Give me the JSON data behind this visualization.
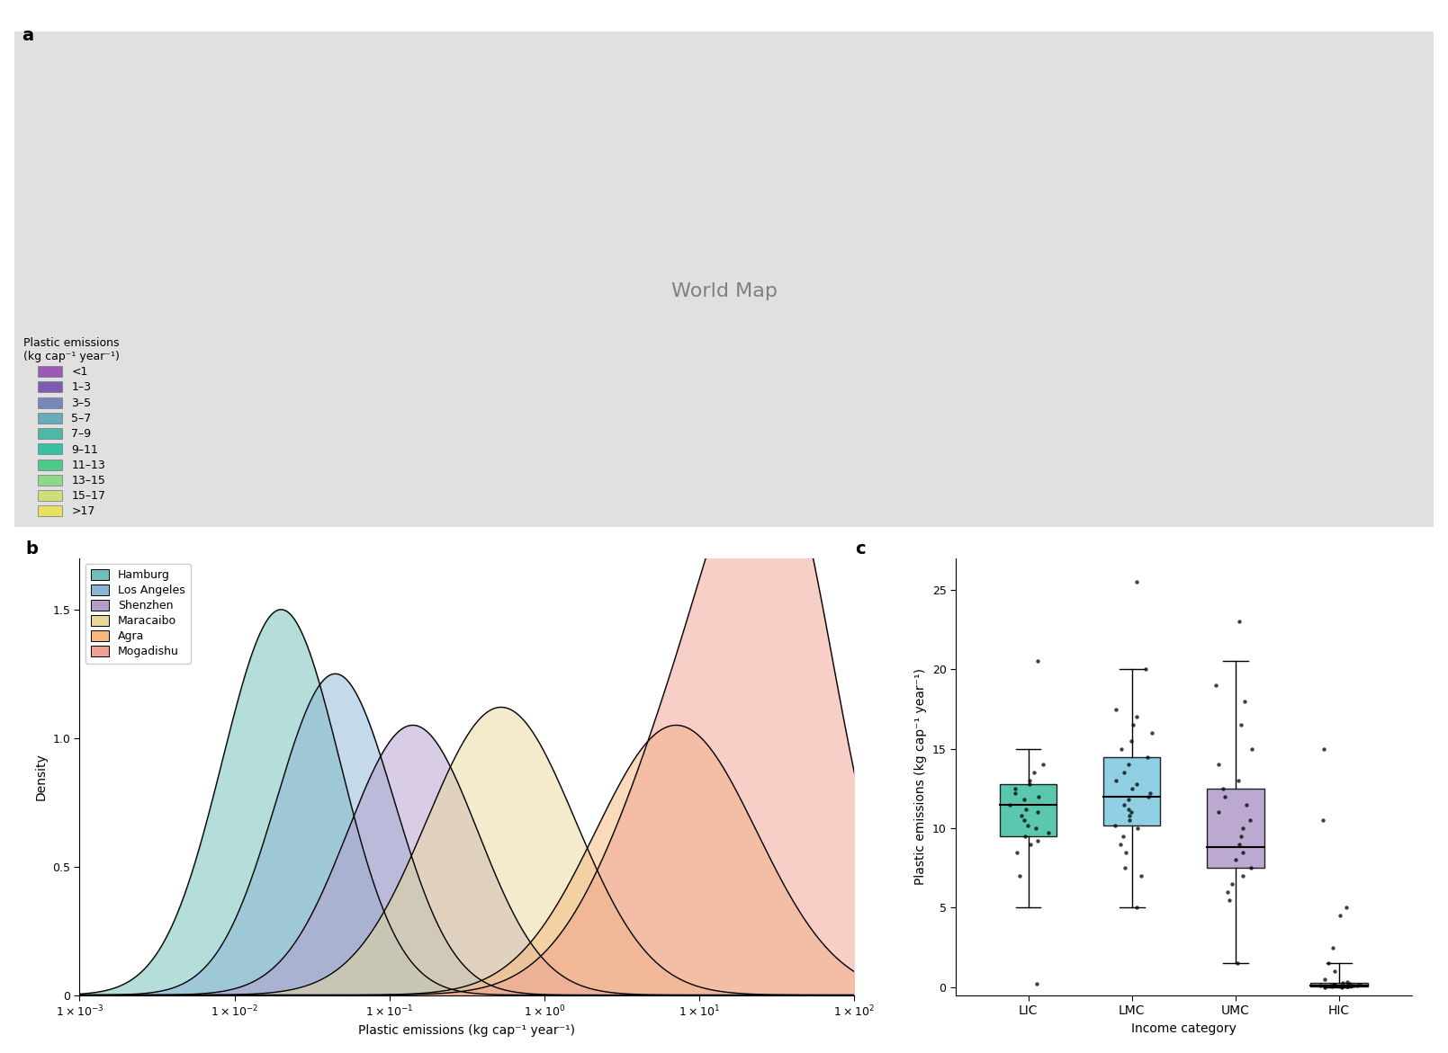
{
  "map_legend_title": "Plastic emissions\n(kg cap⁻¹ year⁻¹)",
  "legend_labels": [
    "<1",
    "1–3",
    "3–5",
    "5–7",
    "7–9",
    "9–11",
    "11–13",
    "13–15",
    "15–17",
    ">17"
  ],
  "legend_colors": [
    "#9b59b6",
    "#7d5bb5",
    "#7986b8",
    "#6baab8",
    "#4db8a8",
    "#3abfa0",
    "#4dc98a",
    "#8fd68a",
    "#cede7a",
    "#e8e060"
  ],
  "country_colors": {
    "United States of America": 0,
    "Canada": 1,
    "Mexico": 4,
    "Guatemala": 6,
    "Belize": 6,
    "Honduras": 7,
    "El Salvador": 6,
    "Nicaragua": 6,
    "Costa Rica": 5,
    "Panama": 5,
    "Cuba": 4,
    "Jamaica": 5,
    "Haiti": 7,
    "Dominican Rep.": 5,
    "Puerto Rico": 3,
    "Trinidad and Tobago": 5,
    "Venezuela": 4,
    "Colombia": 4,
    "Ecuador": 5,
    "Peru": 4,
    "Bolivia": 5,
    "Brazil": 4,
    "Paraguay": 8,
    "Chile": 2,
    "Argentina": 2,
    "Uruguay": 2,
    "Guyana": 5,
    "Suriname": 5,
    "Iceland": 0,
    "Norway": 0,
    "Sweden": 0,
    "Finland": 0,
    "Denmark": 0,
    "United Kingdom": 0,
    "Ireland": 0,
    "Netherlands": 0,
    "Belgium": 0,
    "Luxembourg": 0,
    "France": 0,
    "Portugal": 0,
    "Spain": 0,
    "Germany": 0,
    "Switzerland": 0,
    "Austria": 0,
    "Italy": 0,
    "Malta": 0,
    "Greece": 1,
    "Cyprus": 1,
    "Czechia": 1,
    "Czech Rep.": 1,
    "Slovakia": 1,
    "Hungary": 1,
    "Poland": 1,
    "Estonia": 1,
    "Latvia": 1,
    "Lithuania": 1,
    "Romania": 2,
    "Bulgaria": 2,
    "Serbia": 2,
    "Croatia": 1,
    "Bosnia and Herz.": 2,
    "N. Macedonia": 3,
    "Albania": 3,
    "Slovenia": 1,
    "Montenegro": 2,
    "Kosovo": 3,
    "Moldova": 3,
    "Ukraine": 3,
    "Belarus": 2,
    "Russia": 5,
    "Georgia": 3,
    "Armenia": 3,
    "Azerbaijan": 3,
    "Kazakhstan": 4,
    "Turkmenistan": 4,
    "Uzbekistan": 5,
    "Kyrgyzstan": 6,
    "Tajikistan": 7,
    "Turkey": 3,
    "Syria": 6,
    "Lebanon": 4,
    "Israel": 0,
    "Jordan": 4,
    "Iraq": 5,
    "Iran": 4,
    "Saudi Arabia": 7,
    "Yemen": 9,
    "Oman": 3,
    "United Arab Emirates": 1,
    "Qatar": 1,
    "Bahrain": 1,
    "Kuwait": 1,
    "Afghanistan": 8,
    "Pakistan": 6,
    "India": 5,
    "Nepal": 6,
    "Bhutan": 6,
    "Bangladesh": 7,
    "Sri Lanka": 5,
    "Myanmar": 6,
    "Thailand": 5,
    "Laos": 7,
    "Cambodia": 7,
    "Vietnam": 6,
    "Malaysia": 4,
    "Singapore": 0,
    "Indonesia": 5,
    "Philippines": 6,
    "China": 5,
    "Mongolia": 5,
    "North Korea": 5,
    "South Korea": 1,
    "Japan": 0,
    "Taiwan": 1,
    "Papua New Guinea": 6,
    "Australia": 0,
    "New Zealand": 0,
    "Morocco": 5,
    "Algeria": 4,
    "Tunisia": 4,
    "Libya": 5,
    "Egypt": 5,
    "Mauritania": 7,
    "Mali": 9,
    "Niger": 8,
    "Chad": 8,
    "Sudan": 8,
    "Ethiopia": 7,
    "Eritrea": 7,
    "Djibouti": 7,
    "Somalia": 6,
    "Senegal": 7,
    "Gambia": 8,
    "Guinea-Bissau": 8,
    "Guinea": 8,
    "Sierra Leone": 8,
    "Liberia": 8,
    "Ivory Coast": 7,
    "Burkina Faso": 8,
    "Ghana": 7,
    "Togo": 8,
    "Benin": 7,
    "Nigeria": 7,
    "Cameroon": 7,
    "Central African Rep.": 8,
    "South Sudan": 7,
    "Uganda": 8,
    "Kenya": 6,
    "Rwanda": 8,
    "Burundi": 8,
    "Tanzania": 7,
    "Mozambique": 8,
    "Zambia": 7,
    "Zimbabwe": 7,
    "Malawi": 8,
    "Angola": 6,
    "Dem. Rep. Congo": 7,
    "Congo": 6,
    "Gabon": 5,
    "Eq. Guinea": 5,
    "South Africa": 4,
    "Lesotho": 7,
    "eSwatini": 6,
    "Botswana": 5,
    "Namibia": 4,
    "Madagascar": 7
  },
  "density_cities": [
    "Hamburg",
    "Los Angeles",
    "Shenzhen",
    "Maracaibo",
    "Agra",
    "Mogadishu"
  ],
  "density_colors": [
    "#6dbfb8",
    "#8ab4d4",
    "#b39dcc",
    "#e8d898",
    "#f5b87a",
    "#f0a090"
  ],
  "density_means_log10": [
    -1.7,
    -1.35,
    -0.85,
    -0.28,
    0.85,
    1.12
  ],
  "density_stds_log10": [
    0.38,
    0.38,
    0.42,
    0.48,
    0.52,
    0.55
  ],
  "density_peak_scales": [
    1.5,
    1.25,
    1.05,
    1.12,
    1.05,
    1.0
  ],
  "mogadishu_peak2_mean": 1.55,
  "mogadishu_peak2_std": 0.35,
  "mogadishu_peak2_weight": 0.55,
  "mogadishu_total_scale": 2.2,
  "xlabel_b": "Plastic emissions (kg cap⁻¹ year⁻¹)",
  "ylabel_b": "Density",
  "boxplot_categories": [
    "LIC",
    "LMC",
    "UMC",
    "HIC"
  ],
  "boxplot_colors": [
    "#3dbfa0",
    "#7ec8e0",
    "#b09ac8",
    "#9b9b9b"
  ],
  "boxplot_medians": [
    11.5,
    12.0,
    8.8,
    0.12
  ],
  "boxplot_q1": [
    9.5,
    10.2,
    7.5,
    0.05
  ],
  "boxplot_q3": [
    12.8,
    14.5,
    12.5,
    0.25
  ],
  "boxplot_whisker_low": [
    5.0,
    5.0,
    1.5,
    0.0
  ],
  "boxplot_whisker_high": [
    15.0,
    20.0,
    20.5,
    1.5
  ],
  "ylabel_c": "Plastic emissions (kg cap⁻¹ year⁻¹)",
  "xlabel_c": "Income category",
  "ylim_c": [
    -0.5,
    27
  ],
  "panel_labels": [
    "a",
    "b",
    "c"
  ],
  "background_color": "#ffffff",
  "LIC_dots": [
    0.2,
    7.0,
    8.5,
    9.0,
    9.2,
    9.5,
    9.7,
    10.0,
    10.2,
    10.5,
    10.8,
    11.0,
    11.2,
    11.5,
    11.8,
    12.0,
    12.2,
    12.5,
    12.8,
    13.0,
    13.5,
    14.0,
    20.5
  ],
  "LMC_dots": [
    5.0,
    7.0,
    7.5,
    8.5,
    9.0,
    9.5,
    10.0,
    10.2,
    10.5,
    10.8,
    11.0,
    11.2,
    11.5,
    11.8,
    12.0,
    12.2,
    12.5,
    12.8,
    13.0,
    13.5,
    14.0,
    14.5,
    15.0,
    15.5,
    16.0,
    16.5,
    17.0,
    17.5,
    20.0,
    25.5
  ],
  "UMC_dots": [
    1.5,
    5.5,
    6.0,
    6.5,
    7.0,
    7.5,
    8.0,
    8.5,
    9.0,
    9.5,
    10.0,
    10.5,
    11.0,
    11.5,
    12.0,
    12.5,
    13.0,
    14.0,
    15.0,
    16.5,
    18.0,
    19.0,
    23.0
  ],
  "HIC_dots": [
    0.0,
    0.0,
    0.02,
    0.03,
    0.05,
    0.05,
    0.07,
    0.08,
    0.09,
    0.1,
    0.1,
    0.12,
    0.12,
    0.13,
    0.15,
    0.15,
    0.17,
    0.2,
    0.25,
    0.3,
    0.5,
    1.0,
    1.5,
    2.5,
    4.5,
    5.0,
    10.5,
    15.0
  ]
}
